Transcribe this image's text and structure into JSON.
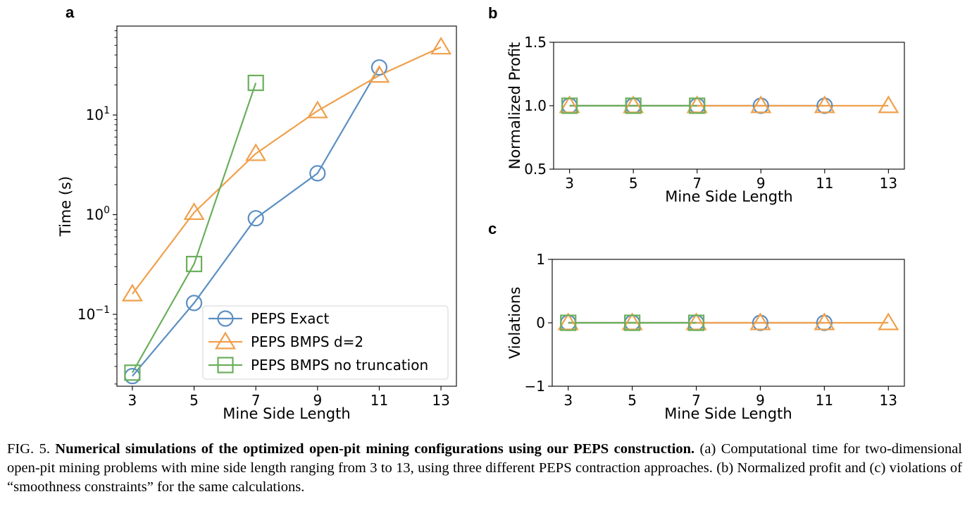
{
  "figure": {
    "panel_labels": [
      "a",
      "b",
      "c"
    ]
  },
  "chart_data": [
    {
      "panel": "a",
      "type": "line",
      "xlabel": "Mine Side Length",
      "ylabel": "Time (s)",
      "yscale": "log",
      "xlim": [
        2.5,
        13.5
      ],
      "ylim": [
        0.019,
        78
      ],
      "x_ticks": [
        3,
        5,
        7,
        9,
        11,
        13
      ],
      "y_ticks": [
        {
          "value": 0.1,
          "base": "10",
          "exp": "−1"
        },
        {
          "value": 1,
          "base": "10",
          "exp": "0"
        },
        {
          "value": 10,
          "base": "10",
          "exp": "1"
        }
      ],
      "legend_position": "lower-right",
      "series": [
        {
          "name": "PEPS Exact",
          "color": "#5b8fc3",
          "marker": "circle",
          "x": [
            3,
            5,
            7,
            9,
            11
          ],
          "y": [
            0.024,
            0.13,
            0.92,
            2.6,
            30
          ]
        },
        {
          "name": "PEPS BMPS d=2",
          "color": "#f0a04b",
          "marker": "triangle",
          "x": [
            3,
            5,
            7,
            9,
            11,
            13
          ],
          "y": [
            0.16,
            1.05,
            4.1,
            11,
            25,
            48
          ]
        },
        {
          "name": "PEPS BMPS no truncation",
          "color": "#6aaf5c",
          "marker": "square",
          "x": [
            3,
            5,
            7
          ],
          "y": [
            0.026,
            0.32,
            21
          ]
        }
      ]
    },
    {
      "panel": "b",
      "type": "line",
      "xlabel": "Mine Side Length",
      "ylabel": "Normalized Profit",
      "xlim": [
        2.5,
        13.5
      ],
      "ylim": [
        0.5,
        1.5
      ],
      "x_ticks": [
        3,
        5,
        7,
        9,
        11,
        13
      ],
      "y_ticks": [
        {
          "value": 0.5,
          "text": "0.5"
        },
        {
          "value": 1.0,
          "text": "1.0"
        },
        {
          "value": 1.5,
          "text": "1.5"
        }
      ],
      "series": [
        {
          "name": "PEPS Exact",
          "color": "#5b8fc3",
          "marker": "circle",
          "x": [
            3,
            5,
            7,
            9,
            11
          ],
          "y": [
            1,
            1,
            1,
            1,
            1
          ]
        },
        {
          "name": "PEPS BMPS d=2",
          "color": "#f0a04b",
          "marker": "triangle",
          "x": [
            3,
            5,
            7,
            9,
            11,
            13
          ],
          "y": [
            1,
            1,
            1,
            1,
            1,
            1
          ]
        },
        {
          "name": "PEPS BMPS no truncation",
          "color": "#6aaf5c",
          "marker": "square",
          "x": [
            3,
            5,
            7
          ],
          "y": [
            1,
            1,
            1
          ]
        }
      ]
    },
    {
      "panel": "c",
      "type": "line",
      "xlabel": "Mine Side Length",
      "ylabel": "Violations",
      "xlim": [
        2.5,
        13.5
      ],
      "ylim": [
        -1,
        1
      ],
      "x_ticks": [
        3,
        5,
        7,
        9,
        11,
        13
      ],
      "y_ticks": [
        {
          "value": -1,
          "text": "−1"
        },
        {
          "value": 0,
          "text": "0"
        },
        {
          "value": 1,
          "text": "1"
        }
      ],
      "series": [
        {
          "name": "PEPS Exact",
          "color": "#5b8fc3",
          "marker": "circle",
          "x": [
            3,
            5,
            7,
            9,
            11
          ],
          "y": [
            0,
            0,
            0,
            0,
            0
          ]
        },
        {
          "name": "PEPS BMPS d=2",
          "color": "#f0a04b",
          "marker": "triangle",
          "x": [
            3,
            5,
            7,
            9,
            11,
            13
          ],
          "y": [
            0,
            0,
            0,
            0,
            0,
            0
          ]
        },
        {
          "name": "PEPS BMPS no truncation",
          "color": "#6aaf5c",
          "marker": "square",
          "x": [
            3,
            5,
            7
          ],
          "y": [
            0,
            0,
            0
          ]
        }
      ]
    }
  ],
  "caption": {
    "label": "FIG. 5.",
    "title": "Numerical simulations of the optimized open-pit mining configurations using our PEPS construction.",
    "body": "(a) Computational time for two-dimensional open-pit mining problems with mine side length ranging from 3 to 13, using three different PEPS contraction approaches.  (b) Normalized profit and (c) violations of “smoothness constraints” for the same calculations."
  }
}
